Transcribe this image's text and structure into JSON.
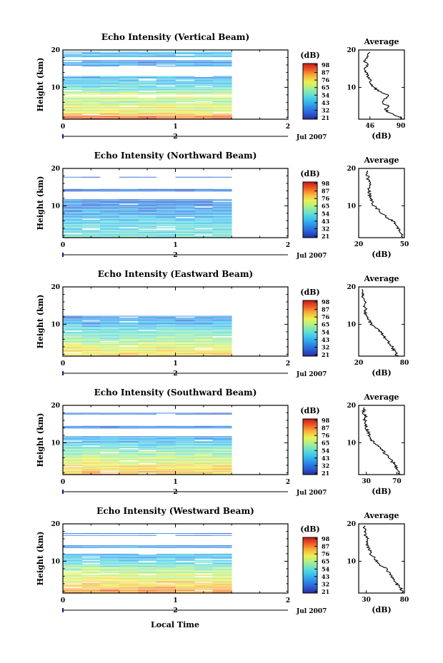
{
  "figure": {
    "xlabel": "Local Time",
    "date_label": "Jul 2007",
    "day_label": "2",
    "ylabel": "Height (km)",
    "profile_title": "Average",
    "profile_xlabel": "(dB)",
    "colorbar_unit": "(dB)",
    "colorbar_ticks": [
      "98",
      "87",
      "76",
      "65",
      "54",
      "43",
      "32",
      "21"
    ]
  },
  "colors": {
    "colormap": [
      "#2b2b9c",
      "#2a5fd6",
      "#2f8fe8",
      "#39c2ef",
      "#68e0cf",
      "#a9f08a",
      "#eef052",
      "#f7b23a",
      "#ef5a23",
      "#c41a1a"
    ],
    "frame": "#000000",
    "day_marker": "#1a1a80"
  },
  "chart_data": [
    {
      "type": "heatmap",
      "title": "Echo Intensity (Vertical Beam)",
      "xlabel": "Local Time",
      "ylabel": "Height (km)",
      "xlim": [
        0,
        2
      ],
      "ylim": [
        1.5,
        20
      ],
      "x_ticks": [
        0,
        1,
        2
      ],
      "y_ticks": [
        10,
        20
      ],
      "data_end_time": 1.5,
      "colorbar_range": [
        21,
        98
      ],
      "colorbar_label": "(dB)",
      "coverage_top": 19.5,
      "gaps": [
        [
          17.3,
          18.0
        ],
        [
          13.1,
          15.4
        ],
        [
          7.6,
          8.0
        ]
      ],
      "profile": {
        "title": "Average",
        "xlabel": "(dB)",
        "xlim": [
          30,
          95
        ],
        "x_ticks": [
          46,
          90
        ],
        "ylim": [
          1.5,
          20
        ],
        "y_ticks": [
          10,
          20
        ],
        "heights": [
          2,
          3,
          4,
          5,
          6,
          7,
          8,
          9,
          10,
          11,
          12,
          13,
          14,
          15,
          16,
          17,
          18,
          19
        ],
        "values": [
          90,
          76,
          68,
          72,
          62,
          68,
          73,
          58,
          52,
          48,
          46,
          43,
          41,
          39,
          42,
          38,
          41,
          45
        ]
      }
    },
    {
      "type": "heatmap",
      "title": "Echo Intensity (Northward Beam)",
      "xlabel": "Local Time",
      "ylabel": "Height (km)",
      "xlim": [
        0,
        2
      ],
      "ylim": [
        1.5,
        20
      ],
      "x_ticks": [
        0,
        1,
        2
      ],
      "y_ticks": [
        10,
        20
      ],
      "data_end_time": 1.5,
      "colorbar_range": [
        21,
        98
      ],
      "colorbar_label": "(dB)",
      "coverage_top": 18.0,
      "gaps": [
        [
          14.5,
          17.5
        ],
        [
          11.7,
          13.7
        ]
      ],
      "profile": {
        "title": "Average",
        "xlabel": "(dB)",
        "xlim": [
          20,
          50
        ],
        "x_ticks": [
          20,
          50
        ],
        "ylim": [
          1.5,
          20
        ],
        "y_ticks": [
          10,
          20
        ],
        "heights": [
          2,
          3,
          4,
          5,
          6,
          7,
          8,
          9,
          10,
          11,
          12,
          13,
          14,
          15,
          16,
          17,
          18,
          19
        ],
        "values": [
          49,
          47,
          46,
          45,
          42,
          38,
          35,
          33,
          30,
          29,
          28,
          27,
          27,
          27,
          28,
          26,
          26,
          25
        ]
      }
    },
    {
      "type": "heatmap",
      "title": "Echo Intensity (Eastward Beam)",
      "xlabel": "Local Time",
      "ylabel": "Height (km)",
      "xlim": [
        0,
        2
      ],
      "ylim": [
        1.5,
        20
      ],
      "x_ticks": [
        0,
        1,
        2
      ],
      "y_ticks": [
        10,
        20
      ],
      "data_end_time": 1.5,
      "colorbar_range": [
        21,
        98
      ],
      "colorbar_label": "(dB)",
      "coverage_top": 14.5,
      "gaps": [
        [
          12.3,
          13.7
        ]
      ],
      "profile": {
        "title": "Average",
        "xlabel": "(dB)",
        "xlim": [
          20,
          80
        ],
        "x_ticks": [
          20,
          80
        ],
        "ylim": [
          1.5,
          20
        ],
        "y_ticks": [
          10,
          20
        ],
        "heights": [
          2,
          3,
          4,
          5,
          6,
          7,
          8,
          9,
          10,
          11,
          12,
          13,
          14,
          15,
          16,
          17,
          18,
          19
        ],
        "values": [
          70,
          66,
          64,
          60,
          55,
          52,
          48,
          44,
          36,
          34,
          30,
          29,
          29,
          27,
          28,
          26,
          25,
          25
        ]
      }
    },
    {
      "type": "heatmap",
      "title": "Echo Intensity (Southward Beam)",
      "xlabel": "Local Time",
      "ylabel": "Height (km)",
      "xlim": [
        0,
        2
      ],
      "ylim": [
        1.5,
        20
      ],
      "x_ticks": [
        0,
        1,
        2
      ],
      "y_ticks": [
        10,
        20
      ],
      "data_end_time": 1.5,
      "colorbar_range": [
        21,
        98
      ],
      "colorbar_label": "(dB)",
      "coverage_top": 18.5,
      "gaps": [
        [
          14.5,
          17.5
        ],
        [
          11.8,
          13.8
        ]
      ],
      "profile": {
        "title": "Average",
        "xlabel": "(dB)",
        "xlim": [
          20,
          80
        ],
        "x_ticks": [
          30,
          70
        ],
        "ylim": [
          1.5,
          20
        ],
        "y_ticks": [
          10,
          20
        ],
        "heights": [
          2,
          3,
          4,
          5,
          6,
          7,
          8,
          9,
          10,
          11,
          12,
          13,
          14,
          15,
          16,
          17,
          18,
          19
        ],
        "values": [
          74,
          70,
          68,
          64,
          60,
          54,
          52,
          46,
          40,
          36,
          34,
          32,
          30,
          30,
          28,
          29,
          26,
          27
        ]
      }
    },
    {
      "type": "heatmap",
      "title": "Echo Intensity (Westward Beam)",
      "xlabel": "Local Time",
      "ylabel": "Height (km)",
      "xlim": [
        0,
        2
      ],
      "ylim": [
        1.5,
        20
      ],
      "x_ticks": [
        0,
        1,
        2
      ],
      "y_ticks": [
        10,
        20
      ],
      "data_end_time": 1.5,
      "colorbar_range": [
        21,
        98
      ],
      "colorbar_label": "(dB)",
      "coverage_top": 17.5,
      "gaps": [
        [
          14.3,
          16.5
        ],
        [
          12.0,
          13.5
        ]
      ],
      "profile": {
        "title": "Average",
        "xlabel": "(dB)",
        "xlim": [
          20,
          80
        ],
        "x_ticks": [
          30,
          80
        ],
        "ylim": [
          1.5,
          20
        ],
        "y_ticks": [
          10,
          20
        ],
        "heights": [
          2,
          3,
          4,
          5,
          6,
          7,
          8,
          9,
          10,
          11,
          12,
          13,
          14,
          15,
          16,
          17,
          18,
          19
        ],
        "values": [
          78,
          74,
          70,
          66,
          62,
          60,
          56,
          48,
          44,
          40,
          36,
          34,
          32,
          30,
          32,
          29,
          28,
          28
        ]
      }
    }
  ]
}
